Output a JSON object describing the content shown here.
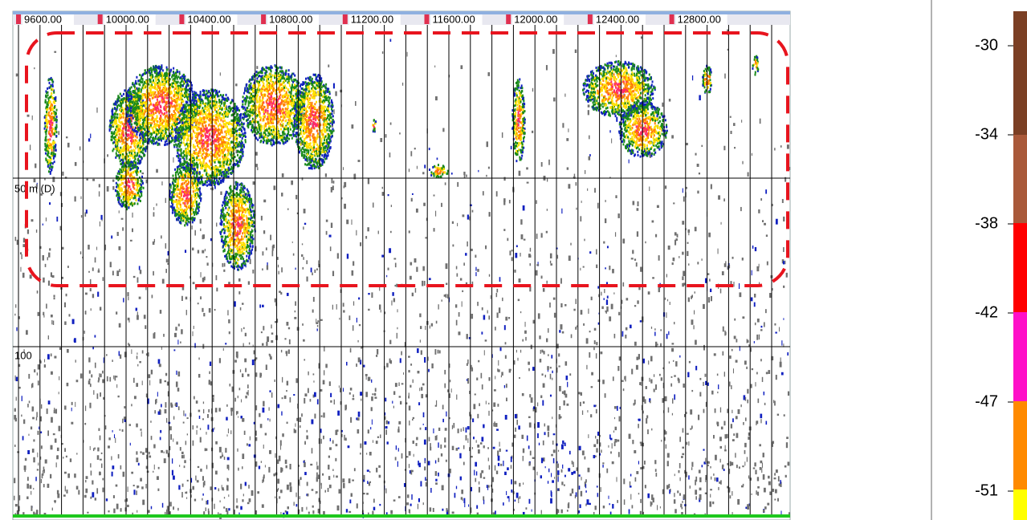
{
  "echogram": {
    "distance_labels": [
      "9600.00",
      "10000.00",
      "10400.00",
      "10800.00",
      "11200.00",
      "11600.00",
      "12000.00",
      "12400.00",
      "12800.00"
    ],
    "depth_labels": [
      "50 m (D)",
      "100"
    ]
  },
  "colorbar": {
    "labels": [
      "-30",
      "-34",
      "-38",
      "-42",
      "-47",
      "-51"
    ],
    "colors": [
      "#7b3f24",
      "#a9593a",
      "#ff0000",
      "#ff10c8",
      "#ff8a00",
      "#ffff00"
    ]
  }
}
